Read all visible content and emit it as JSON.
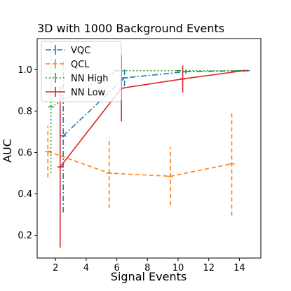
{
  "chart_data": {
    "type": "line",
    "title": "3D with 1000 Background Events",
    "xlabel": "Signal Events",
    "ylabel": "AUC",
    "xlim": [
      0.8,
      15.4
    ],
    "ylim": [
      0.09,
      1.15
    ],
    "xticks": [
      2,
      4,
      6,
      8,
      10,
      12,
      14
    ],
    "yticks": [
      0.2,
      0.4,
      0.6,
      0.8,
      1.0
    ],
    "xtick_labels": [
      "2",
      "4",
      "6",
      "8",
      "10",
      "12",
      "14"
    ],
    "ytick_labels": [
      "0.2",
      "0.4",
      "0.6",
      "0.8",
      "1.0"
    ],
    "legend_position": "top-left",
    "grid": false,
    "series": [
      {
        "name": "VQC",
        "color": "#1f77b4",
        "dash": "8,3,2,3",
        "points": [
          {
            "x": 2.5,
            "y": 0.68,
            "err": 0.37
          },
          {
            "x": 6.5,
            "y": 0.96,
            "err": 0.04
          },
          {
            "x": 10.5,
            "y": 0.99,
            "err": 0.01
          },
          {
            "x": 14.5,
            "y": 0.995,
            "err": 0.005
          }
        ]
      },
      {
        "name": "QCL",
        "color": "#ff7f0e",
        "dash": "6,4",
        "points": [
          {
            "x": 1.5,
            "y": 0.605,
            "err": 0.125
          },
          {
            "x": 5.5,
            "y": 0.5,
            "err": 0.17
          },
          {
            "x": 9.5,
            "y": 0.485,
            "err": 0.14
          },
          {
            "x": 13.5,
            "y": 0.545,
            "err": 0.25
          }
        ]
      },
      {
        "name": "NN High",
        "color": "#2ca02c",
        "dash": "2,3",
        "points": [
          {
            "x": 1.7,
            "y": 0.82,
            "err": 0.32
          },
          {
            "x": 6.0,
            "y": 0.995,
            "err": 0.005
          },
          {
            "x": 10.0,
            "y": 0.995,
            "err": 0.005
          },
          {
            "x": 14.0,
            "y": 0.995,
            "err": 0.005
          }
        ]
      },
      {
        "name": "NN Low",
        "color": "#d62728",
        "dash": "",
        "points": [
          {
            "x": 2.3,
            "y": 0.53,
            "err": 0.39
          },
          {
            "x": 6.3,
            "y": 0.91,
            "err": 0.16
          },
          {
            "x": 10.3,
            "y": 0.955,
            "err": 0.065
          },
          {
            "x": 14.3,
            "y": 0.995,
            "err": 0.005
          }
        ]
      }
    ]
  }
}
